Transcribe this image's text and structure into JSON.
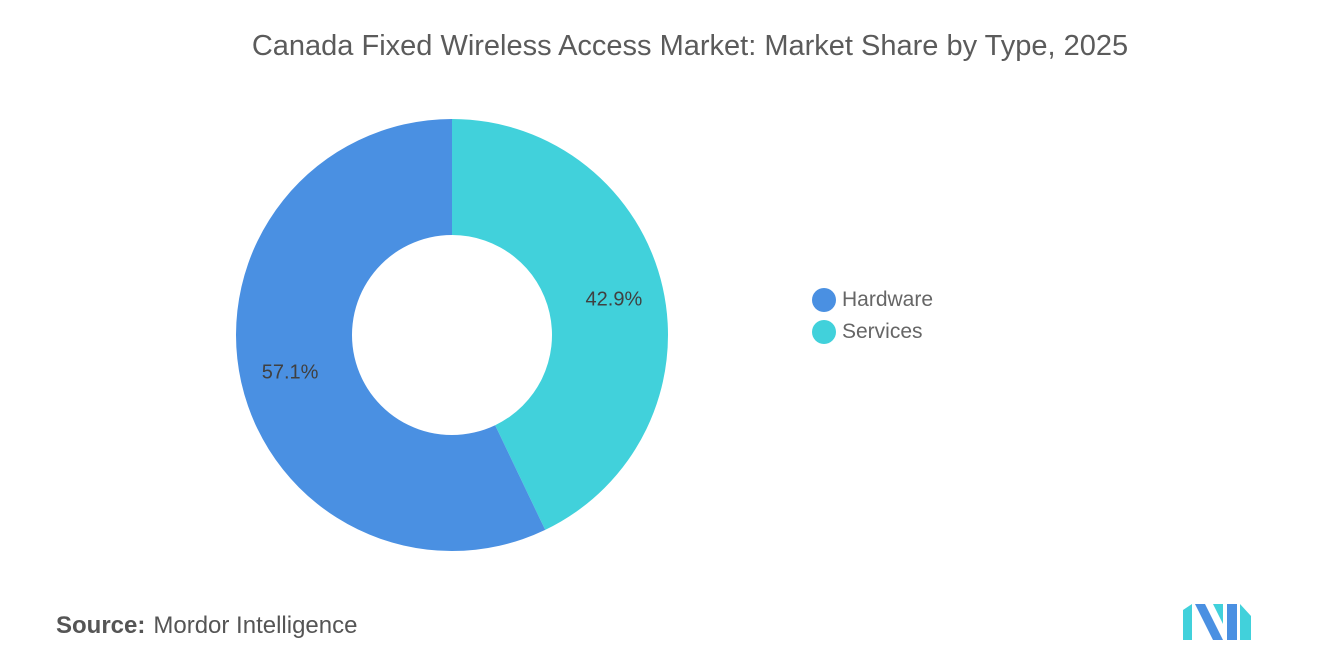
{
  "chart_data": {
    "type": "pie",
    "title": "Canada Fixed Wireless Access Market: Market Share by Type, 2025",
    "categories": [
      "Hardware",
      "Services"
    ],
    "values": [
      57.1,
      42.9
    ],
    "labels": [
      "57.1%",
      "42.9%"
    ],
    "colors": [
      "#4a90e2",
      "#41d1db"
    ],
    "donut": true,
    "legend_position": "right"
  },
  "source": {
    "label": "Source:",
    "value": "Mordor Intelligence"
  },
  "logo": {
    "icon": "mordor-intelligence-logo-icon",
    "colors": [
      "#4a90e2",
      "#41d1db"
    ]
  }
}
